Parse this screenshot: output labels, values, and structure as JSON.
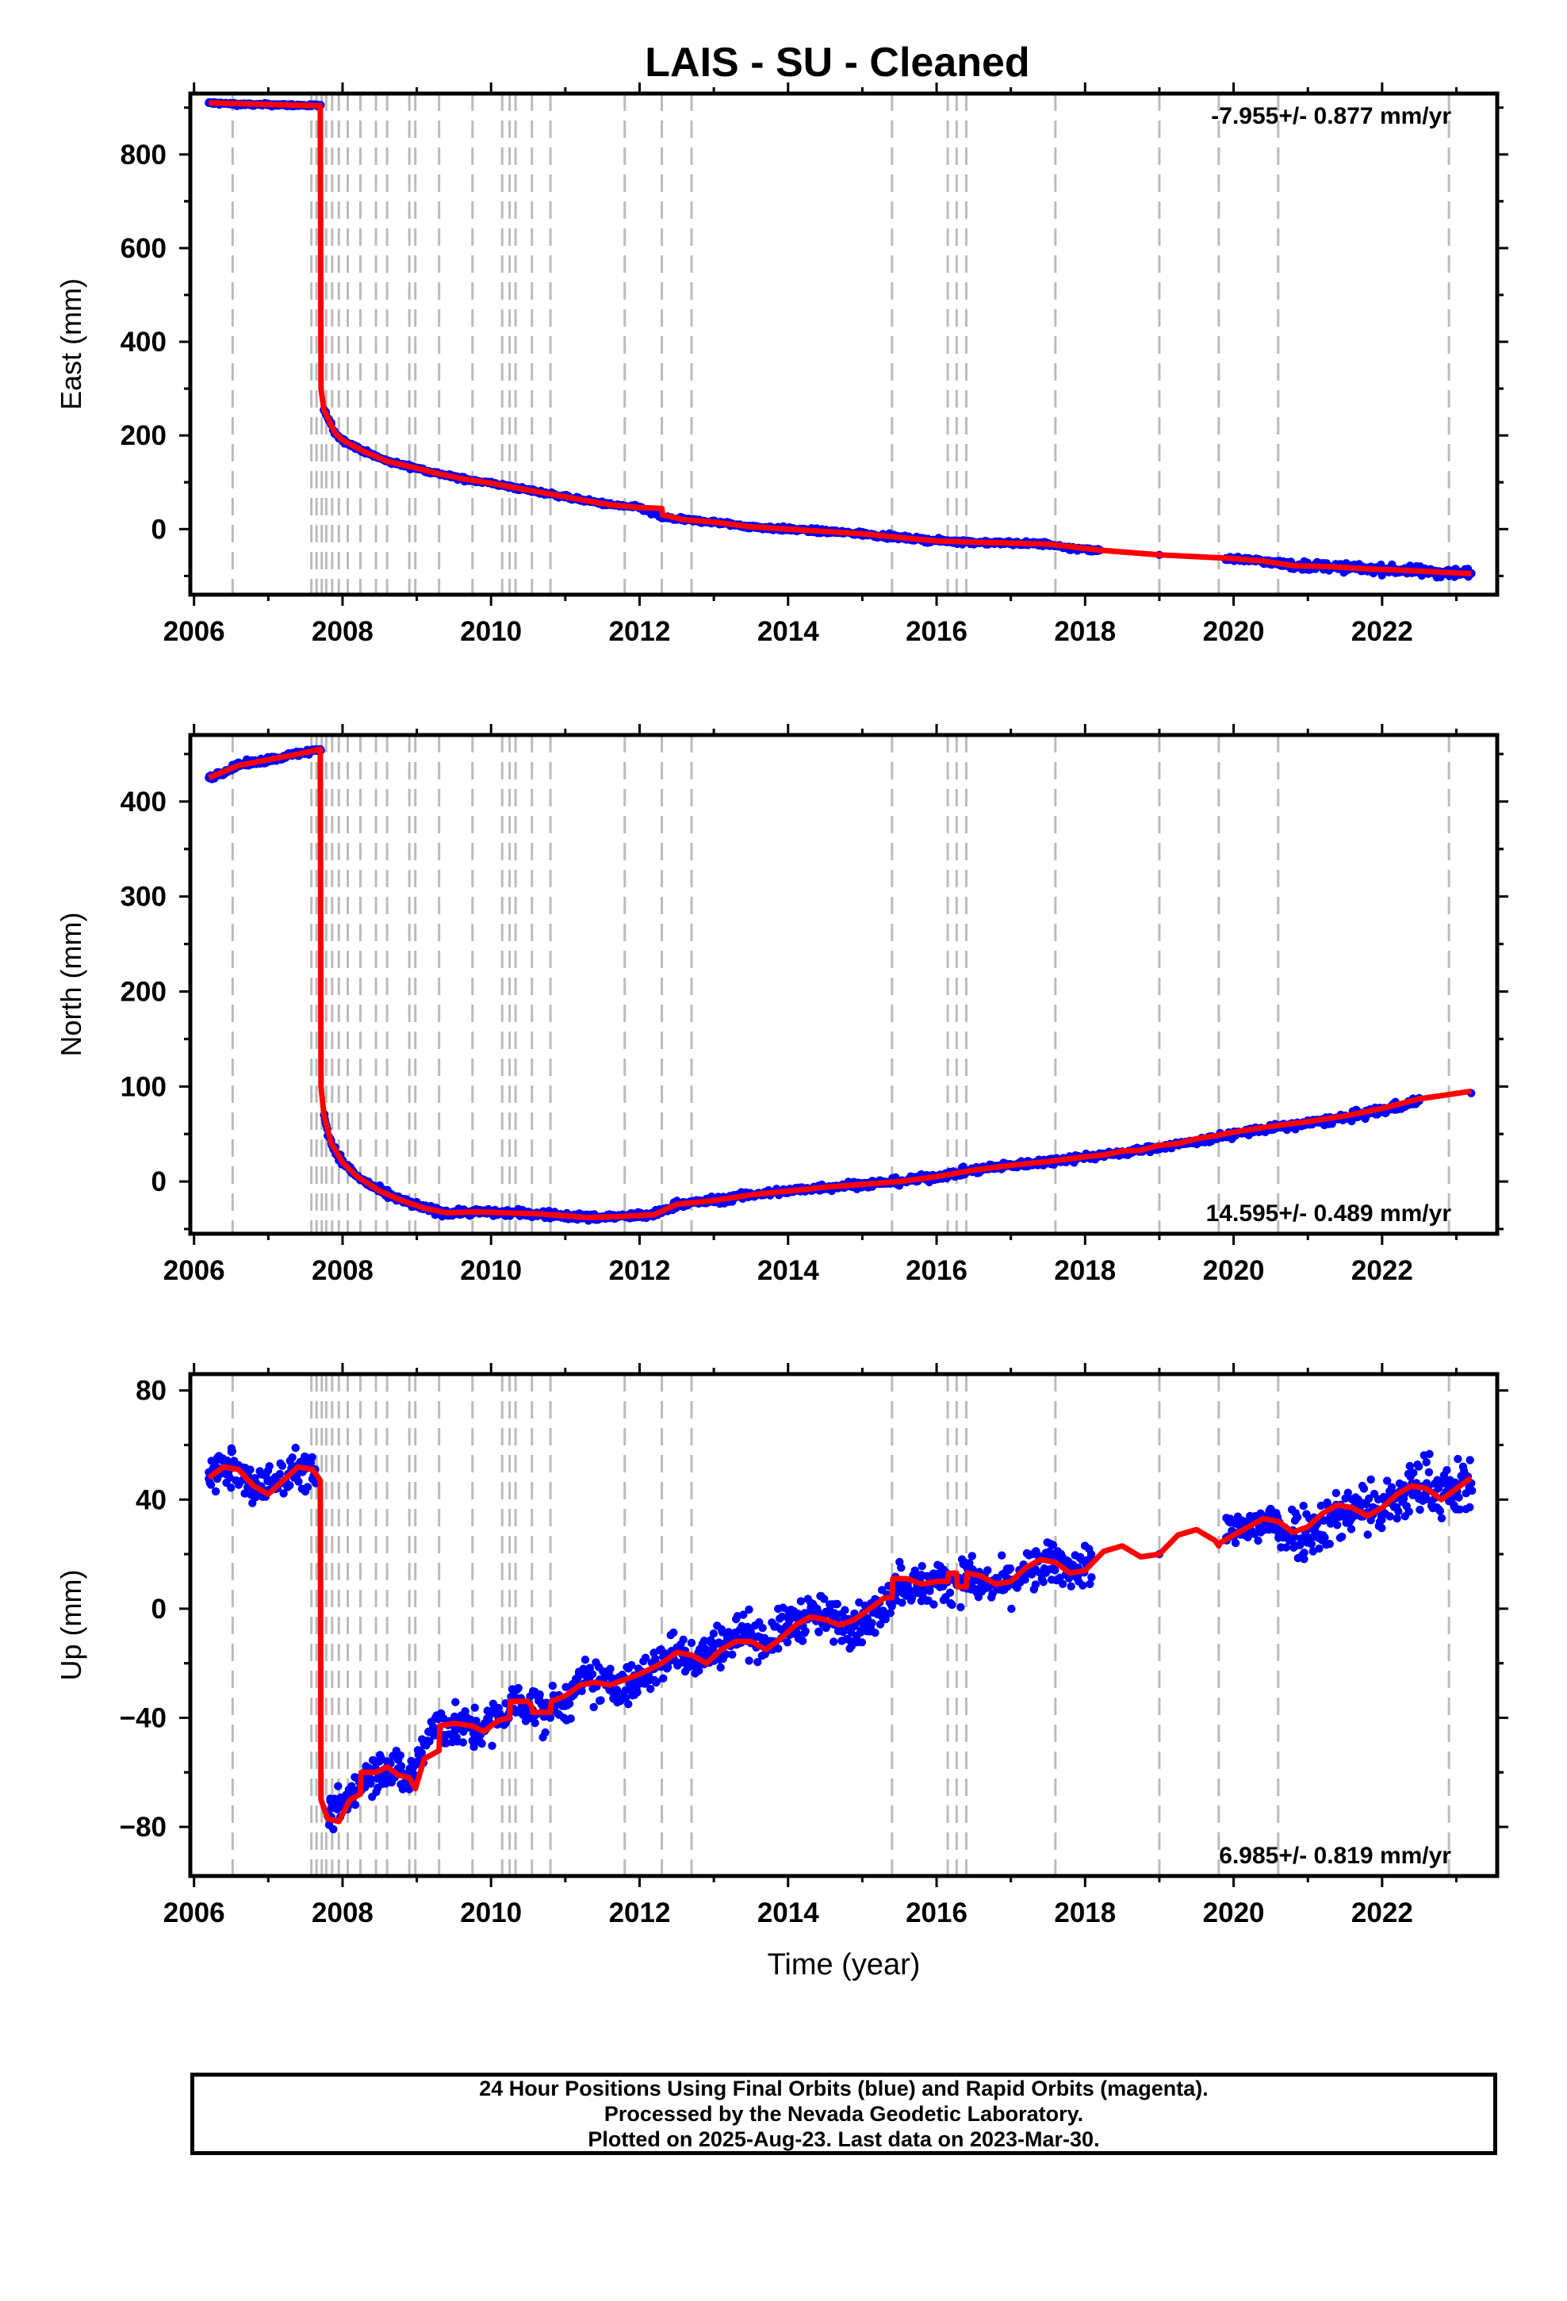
{
  "title": "LAIS  - SU - Cleaned",
  "colors": {
    "points": "#0000ff",
    "model": "#ff0000",
    "steps": "#bbbbbb",
    "frame": "#000000"
  },
  "caption": [
    "24 Hour Positions Using Final Orbits (blue) and Rapid Orbits (magenta).",
    "Processed by the Nevada Geodetic Laboratory.",
    "Plotted on 2025-Aug-23. Last data on 2023-Mar-30."
  ],
  "chart_data": [
    {
      "type": "scatter",
      "id": "east",
      "ylabel": "East (mm)",
      "xlabel": "",
      "xlim": [
        2005.95,
        2023.55
      ],
      "ylim": [
        -140,
        930
      ],
      "xticks": [
        2006,
        2008,
        2010,
        2012,
        2014,
        2016,
        2018,
        2020,
        2022
      ],
      "yticks": [
        0,
        200,
        400,
        600,
        800
      ],
      "rate": "-7.955+/- 0.877 mm/yr",
      "rate_position": "top-right",
      "step_epochs": [
        2006.52,
        2007.58,
        2007.65,
        2007.72,
        2007.78,
        2007.86,
        2007.95,
        2008.07,
        2008.24,
        2008.45,
        2008.6,
        2008.9,
        2008.98,
        2009.3,
        2009.75,
        2010.15,
        2010.25,
        2010.33,
        2010.55,
        2010.8,
        2011.8,
        2012.3,
        2012.7,
        2015.4,
        2016.15,
        2016.27,
        2016.4,
        2017.6,
        2019.0,
        2019.8,
        2020.6,
        2022.9
      ],
      "series": [
        {
          "name": "",
          "kind": "points",
          "x": [
            2006.2,
            2006.5,
            2006.8,
            2007.1,
            2007.4,
            2007.7,
            2007.75,
            2007.9,
            2008.0,
            2008.3,
            2008.6,
            2009.0,
            2009.3,
            2009.6,
            2010.0,
            2010.4,
            2010.8,
            2011.2,
            2011.6,
            2012.0,
            2012.3,
            2012.6,
            2013.0,
            2013.5,
            2014.0,
            2014.5,
            2015.0,
            2015.5,
            2016.0,
            2016.5,
            2017.0,
            2017.5,
            2017.7,
            2018.2,
            2019.0,
            2019.9,
            2020.4,
            2020.8,
            2021.3,
            2021.8,
            2022.3,
            2022.8,
            2023.2
          ],
          "y": [
            910,
            908,
            906,
            906,
            905,
            904,
            255,
            205,
            190,
            165,
            145,
            130,
            118,
            108,
            98,
            86,
            75,
            63,
            52,
            46,
            25,
            20,
            15,
            5,
            0,
            -5,
            -10,
            -18,
            -25,
            -28,
            -30,
            -32,
            -40,
            -45,
            -55,
            -62,
            -68,
            -78,
            -80,
            -85,
            -88,
            -92,
            -95
          ],
          "spread": [
            4,
            4,
            4,
            4,
            4,
            4,
            5,
            5,
            5,
            5,
            5,
            5,
            5,
            5,
            5,
            5,
            5,
            5,
            5,
            5,
            5,
            5,
            5,
            6,
            6,
            6,
            6,
            6,
            6,
            6,
            6,
            6,
            6,
            6,
            6,
            6,
            8,
            12,
            12,
            12,
            12,
            14,
            14
          ]
        },
        {
          "name": "",
          "kind": "model",
          "x": [
            2006.2,
            2007.7,
            2007.71,
            2007.75,
            2007.9,
            2008.0,
            2008.3,
            2008.6,
            2009.0,
            2009.3,
            2009.6,
            2010.0,
            2010.4,
            2010.8,
            2011.2,
            2011.6,
            2012.0,
            2012.3,
            2012.31,
            2012.6,
            2013.0,
            2013.5,
            2014.0,
            2014.5,
            2015.0,
            2015.5,
            2016.0,
            2016.5,
            2017.0,
            2017.5,
            2018.2,
            2019.0,
            2019.9,
            2020.4,
            2020.8,
            2021.3,
            2021.8,
            2022.3,
            2022.8,
            2023.2
          ],
          "y": [
            910,
            904,
            300,
            255,
            205,
            190,
            165,
            145,
            130,
            118,
            108,
            98,
            86,
            75,
            63,
            52,
            46,
            44,
            30,
            20,
            15,
            5,
            0,
            -5,
            -10,
            -18,
            -25,
            -28,
            -30,
            -32,
            -45,
            -55,
            -62,
            -68,
            -78,
            -80,
            -85,
            -88,
            -92,
            -95
          ]
        }
      ]
    },
    {
      "type": "scatter",
      "id": "north",
      "ylabel": "North (mm)",
      "xlabel": "",
      "xlim": [
        2005.95,
        2023.55
      ],
      "ylim": [
        -55,
        470
      ],
      "xticks": [
        2006,
        2008,
        2010,
        2012,
        2014,
        2016,
        2018,
        2020,
        2022
      ],
      "yticks": [
        0,
        100,
        200,
        300,
        400
      ],
      "rate": "14.595+/- 0.489 mm/yr",
      "rate_position": "bottom-right",
      "step_epochs": [
        2006.52,
        2007.58,
        2007.65,
        2007.72,
        2007.78,
        2007.86,
        2007.95,
        2008.07,
        2008.24,
        2008.45,
        2008.6,
        2008.9,
        2008.98,
        2009.3,
        2009.75,
        2010.15,
        2010.25,
        2010.33,
        2010.55,
        2010.8,
        2011.8,
        2012.3,
        2012.7,
        2015.4,
        2016.15,
        2016.27,
        2016.4,
        2017.6,
        2019.0,
        2019.8,
        2020.6,
        2022.9
      ],
      "series": [
        {
          "name": "",
          "kind": "points",
          "x": [
            2006.2,
            2006.6,
            2007.0,
            2007.4,
            2007.7,
            2007.75,
            2007.85,
            2008.0,
            2008.2,
            2008.5,
            2008.8,
            2009.1,
            2009.4,
            2009.8,
            2010.2,
            2010.6,
            2011.0,
            2011.3,
            2011.7,
            2012.2,
            2012.5,
            2013.0,
            2013.5,
            2014.0,
            2014.5,
            2015.0,
            2015.5,
            2016.0,
            2016.5,
            2017.0,
            2017.5,
            2018.0,
            2018.5,
            2019.0,
            2019.5,
            2020.0,
            2020.5,
            2021.0,
            2021.5,
            2022.0,
            2022.5,
            2023.2
          ],
          "y": [
            425,
            438,
            444,
            450,
            455,
            70,
            40,
            20,
            5,
            -10,
            -20,
            -28,
            -33,
            -32,
            -33,
            -34,
            -36,
            -38,
            -37,
            -35,
            -24,
            -20,
            -14,
            -10,
            -6,
            -3,
            0,
            5,
            12,
            17,
            21,
            26,
            30,
            36,
            42,
            50,
            56,
            61,
            67,
            75,
            85,
            93
          ],
          "spread": [
            4,
            4,
            4,
            4,
            4,
            6,
            6,
            5,
            5,
            5,
            5,
            5,
            5,
            5,
            5,
            5,
            5,
            5,
            5,
            5,
            5,
            5,
            5,
            5,
            5,
            5,
            5,
            5,
            5,
            5,
            5,
            5,
            4,
            4,
            4,
            5,
            5,
            5,
            6,
            6,
            6,
            6
          ]
        },
        {
          "name": "",
          "kind": "model",
          "x": [
            2006.2,
            2006.6,
            2007.0,
            2007.4,
            2007.7,
            2007.71,
            2007.75,
            2007.85,
            2008.0,
            2008.2,
            2008.5,
            2008.8,
            2009.1,
            2009.4,
            2009.8,
            2010.2,
            2010.6,
            2011.0,
            2011.3,
            2011.7,
            2012.2,
            2012.5,
            2013.0,
            2013.5,
            2014.0,
            2014.5,
            2015.0,
            2015.5,
            2016.0,
            2016.5,
            2017.0,
            2017.5,
            2018.0,
            2018.25,
            2018.5,
            2018.75,
            2019.0,
            2019.25,
            2019.5,
            2019.75,
            2020.0,
            2020.5,
            2021.0,
            2021.5,
            2022.0,
            2022.5,
            2023.2
          ],
          "y": [
            425,
            438,
            444,
            450,
            455,
            100,
            70,
            40,
            20,
            5,
            -10,
            -20,
            -28,
            -33,
            -32,
            -33,
            -34,
            -36,
            -38,
            -37,
            -35,
            -24,
            -20,
            -14,
            -10,
            -6,
            -3,
            0,
            5,
            12,
            17,
            21,
            26,
            28,
            32,
            33,
            38,
            40,
            45,
            48,
            52,
            58,
            63,
            69,
            77,
            87,
            95
          ]
        }
      ]
    },
    {
      "type": "scatter",
      "id": "up",
      "ylabel": "Up (mm)",
      "xlabel": "Time (year)",
      "xlim": [
        2005.95,
        2023.55
      ],
      "ylim": [
        -98,
        86
      ],
      "xticks": [
        2006,
        2008,
        2010,
        2012,
        2014,
        2016,
        2018,
        2020,
        2022
      ],
      "yticks": [
        -80,
        -40,
        0,
        40,
        80
      ],
      "rate": "6.985+/- 0.819 mm/yr",
      "rate_position": "bottom-right",
      "step_epochs": [
        2006.52,
        2007.58,
        2007.65,
        2007.72,
        2007.78,
        2007.86,
        2007.95,
        2008.07,
        2008.24,
        2008.45,
        2008.6,
        2008.9,
        2008.98,
        2009.3,
        2009.75,
        2010.15,
        2010.25,
        2010.33,
        2010.55,
        2010.8,
        2011.8,
        2012.3,
        2012.7,
        2015.4,
        2016.15,
        2016.27,
        2016.4,
        2017.6,
        2019.0,
        2019.8,
        2020.6,
        2022.9
      ],
      "series": [
        {
          "name": "",
          "kind": "points",
          "x": [
            2006.2,
            2006.5,
            2006.8,
            2007.1,
            2007.4,
            2007.65,
            2007.8,
            2008.0,
            2008.3,
            2008.6,
            2008.9,
            2009.2,
            2009.5,
            2009.8,
            2010.1,
            2010.4,
            2010.7,
            2011.0,
            2011.3,
            2011.6,
            2011.9,
            2012.2,
            2012.5,
            2012.8,
            2013.1,
            2013.4,
            2013.7,
            2014.0,
            2014.3,
            2014.6,
            2014.9,
            2015.2,
            2015.5,
            2015.8,
            2016.1,
            2016.4,
            2016.7,
            2017.0,
            2017.3,
            2017.6,
            2017.9,
            2018.1,
            2019.0,
            2019.9,
            2020.2,
            2020.5,
            2020.8,
            2021.1,
            2021.4,
            2021.7,
            2022.0,
            2022.3,
            2022.6,
            2022.9,
            2023.2
          ],
          "y": [
            50,
            52,
            44,
            47,
            52,
            48,
            -76,
            -72,
            -60,
            -58,
            -62,
            -45,
            -43,
            -45,
            -40,
            -34,
            -38,
            -34,
            -26,
            -28,
            -28,
            -22,
            -15,
            -18,
            -13,
            -8,
            -12,
            -6,
            -2,
            -4,
            -6,
            -2,
            10,
            8,
            10,
            12,
            8,
            10,
            14,
            17,
            14,
            18,
            20,
            26,
            30,
            32,
            28,
            30,
            34,
            38,
            36,
            42,
            46,
            42,
            46
          ],
          "spread": [
            9,
            9,
            9,
            9,
            9,
            9,
            10,
            10,
            10,
            10,
            10,
            10,
            10,
            10,
            10,
            10,
            10,
            10,
            10,
            10,
            10,
            10,
            10,
            10,
            10,
            10,
            10,
            10,
            10,
            10,
            10,
            10,
            10,
            10,
            10,
            10,
            10,
            10,
            10,
            10,
            10,
            10,
            6,
            11,
            11,
            11,
            13,
            13,
            13,
            13,
            14,
            14,
            14,
            14,
            14
          ]
        },
        {
          "name": "",
          "kind": "model",
          "x": [
            2006.2,
            2006.4,
            2006.6,
            2006.8,
            2007.0,
            2007.2,
            2007.4,
            2007.6,
            2007.7,
            2007.71,
            2007.8,
            2007.95,
            2008.1,
            2008.24,
            2008.25,
            2008.45,
            2008.6,
            2008.75,
            2008.9,
            2008.98,
            2009.1,
            2009.3,
            2009.31,
            2009.5,
            2009.75,
            2009.9,
            2010.1,
            2010.25,
            2010.26,
            2010.5,
            2010.55,
            2010.56,
            2010.8,
            2010.81,
            2011.0,
            2011.2,
            2011.4,
            2011.6,
            2011.8,
            2012.0,
            2012.3,
            2012.5,
            2012.7,
            2012.9,
            2013.1,
            2013.3,
            2013.5,
            2013.7,
            2013.9,
            2014.1,
            2014.3,
            2014.5,
            2014.7,
            2014.9,
            2015.1,
            2015.3,
            2015.4,
            2015.41,
            2015.6,
            2015.8,
            2016.0,
            2016.15,
            2016.16,
            2016.27,
            2016.28,
            2016.4,
            2016.41,
            2016.6,
            2016.8,
            2017.0,
            2017.2,
            2017.4,
            2017.6,
            2017.8,
            2018.0,
            2018.25,
            2018.5,
            2018.75,
            2019.0,
            2019.25,
            2019.5,
            2019.75,
            2019.8,
            2019.81,
            2020.0,
            2020.2,
            2020.4,
            2020.6,
            2020.8,
            2021.0,
            2021.2,
            2021.4,
            2021.6,
            2021.8,
            2022.0,
            2022.2,
            2022.4,
            2022.6,
            2022.8,
            2023.0,
            2023.2
          ],
          "y": [
            48,
            52,
            51,
            45,
            42,
            47,
            52,
            51,
            47,
            -70,
            -77,
            -78,
            -70,
            -68,
            -60,
            -60,
            -58,
            -61,
            -62,
            -66,
            -55,
            -52,
            -43,
            -42,
            -43,
            -45,
            -41,
            -40,
            -34,
            -34,
            -36,
            -38,
            -38,
            -34,
            -32,
            -28,
            -27,
            -28,
            -26,
            -24,
            -20,
            -16,
            -17,
            -20,
            -15,
            -12,
            -12,
            -15,
            -11,
            -6,
            -3,
            -4,
            -6,
            -4,
            0,
            4,
            4,
            11,
            11,
            9,
            10,
            10,
            13,
            13,
            8,
            8,
            13,
            12,
            9,
            10,
            15,
            18,
            17,
            13,
            14,
            21,
            23,
            19,
            20,
            27,
            29,
            25,
            23,
            24,
            27,
            30,
            33,
            32,
            28,
            30,
            35,
            38,
            37,
            34,
            37,
            42,
            45,
            44,
            40,
            44,
            48
          ]
        }
      ]
    }
  ]
}
